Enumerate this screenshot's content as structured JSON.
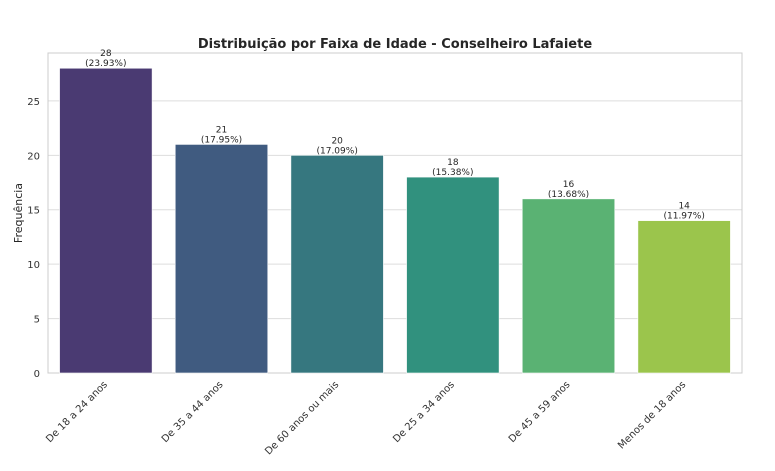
{
  "chart_data": {
    "type": "bar",
    "title": "Distribuição por Faixa de Idade - Conselheiro Lafaiete",
    "xlabel": "",
    "ylabel": "Frequência",
    "ylim": [
      0,
      29.4
    ],
    "yticks": [
      0,
      5,
      10,
      15,
      20,
      25
    ],
    "grid": true,
    "categories": [
      "De 18 a 24 anos",
      "De 35 a 44 anos",
      "De 60 anos ou mais",
      "De 25 a 34 anos",
      "De 45 a 59 anos",
      "Menos de 18 anos"
    ],
    "values": [
      28,
      21,
      20,
      18,
      16,
      14
    ],
    "percent_labels": [
      "(23.93%)",
      "(17.95%)",
      "(17.09%)",
      "(15.38%)",
      "(13.68%)",
      "(11.97%)"
    ],
    "colors": [
      "#4a3a72",
      "#405b80",
      "#36777f",
      "#31917e",
      "#5ab273",
      "#9bc54c"
    ]
  }
}
